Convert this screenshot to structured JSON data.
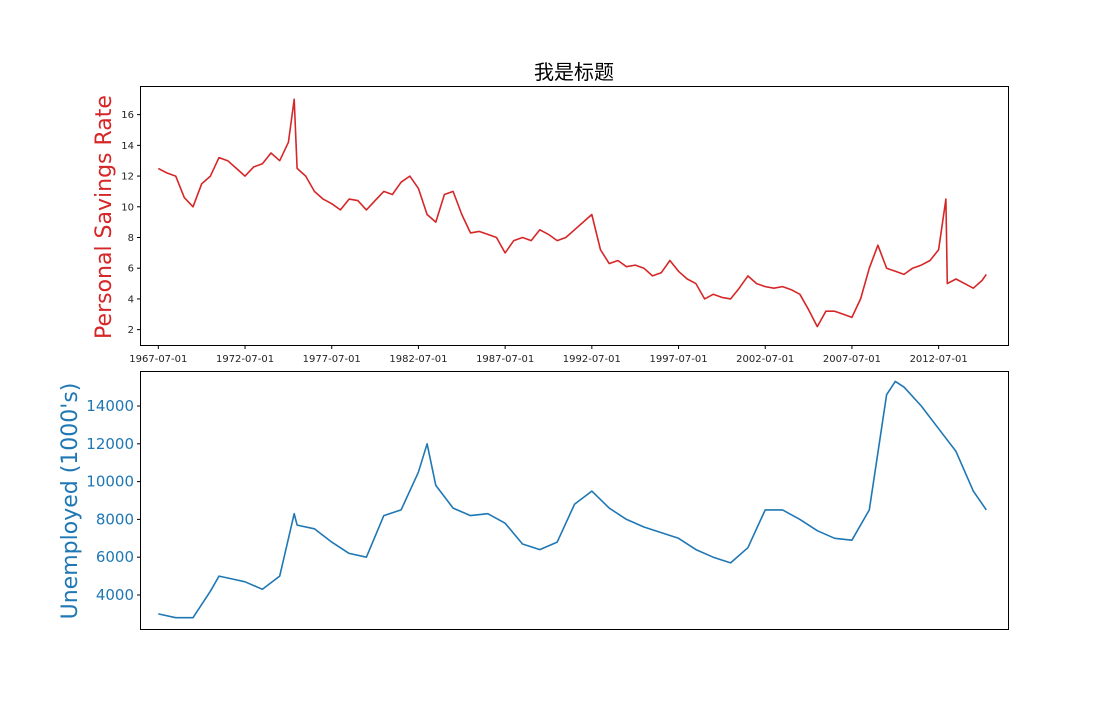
{
  "chart_data": [
    {
      "type": "line",
      "title": "我是标题",
      "ylabel": "Personal Savings Rate",
      "xlabel": "",
      "color": "#d62728",
      "x_start": "1967-07-01",
      "x_end": "2015-04-01",
      "xlim": [
        "1966-07-01",
        "2016-07-01"
      ],
      "ylim": [
        1,
        17.8
      ],
      "x_tick_labels": [
        "1967-07-01",
        "1972-07-01",
        "1977-07-01",
        "1982-07-01",
        "1987-07-01",
        "1992-07-01",
        "1997-07-01",
        "2002-07-01",
        "2007-07-01",
        "2012-07-01"
      ],
      "y_ticks": [
        "2",
        "4",
        "6",
        "8",
        "10",
        "12",
        "14",
        "16"
      ],
      "grid": false,
      "series": [
        {
          "x": [
            "1967-07-01",
            "1968-01-01",
            "1968-07-01",
            "1969-01-01",
            "1969-07-01",
            "1970-01-01",
            "1970-07-01",
            "1971-01-01",
            "1971-07-01",
            "1972-01-01",
            "1972-07-01",
            "1973-01-01",
            "1973-07-01",
            "1974-01-01",
            "1974-07-01",
            "1975-01-01",
            "1975-05-01",
            "1975-07-01",
            "1976-01-01",
            "1976-07-01",
            "1977-01-01",
            "1977-07-01",
            "1978-01-01",
            "1978-07-01",
            "1979-01-01",
            "1979-07-01",
            "1980-01-01",
            "1980-07-01",
            "1981-01-01",
            "1981-07-01",
            "1982-01-01",
            "1982-07-01",
            "1983-01-01",
            "1983-07-01",
            "1984-01-01",
            "1984-07-01",
            "1985-01-01",
            "1985-07-01",
            "1986-01-01",
            "1986-07-01",
            "1987-01-01",
            "1987-07-01",
            "1988-01-01",
            "1988-07-01",
            "1989-01-01",
            "1989-07-01",
            "1990-01-01",
            "1990-07-01",
            "1991-01-01",
            "1991-07-01",
            "1992-01-01",
            "1992-07-01",
            "1993-01-01",
            "1993-07-01",
            "1994-01-01",
            "1994-07-01",
            "1995-01-01",
            "1995-07-01",
            "1996-01-01",
            "1996-07-01",
            "1997-01-01",
            "1997-07-01",
            "1998-01-01",
            "1998-07-01",
            "1999-01-01",
            "1999-07-01",
            "2000-01-01",
            "2000-07-01",
            "2001-01-01",
            "2001-07-01",
            "2002-01-01",
            "2002-07-01",
            "2003-01-01",
            "2003-07-01",
            "2004-01-01",
            "2004-07-01",
            "2005-01-01",
            "2005-07-01",
            "2006-01-01",
            "2006-07-01",
            "2007-01-01",
            "2007-07-01",
            "2008-01-01",
            "2008-07-01",
            "2009-01-01",
            "2009-07-01",
            "2010-01-01",
            "2010-07-01",
            "2011-01-01",
            "2011-07-01",
            "2012-01-01",
            "2012-07-01",
            "2012-12-01",
            "2013-01-01",
            "2013-07-01",
            "2014-01-01",
            "2014-07-01",
            "2015-01-01",
            "2015-04-01"
          ],
          "values": [
            12.5,
            12.2,
            12.0,
            10.6,
            10.0,
            11.5,
            12.0,
            13.2,
            13.0,
            12.5,
            12.0,
            12.6,
            12.8,
            13.5,
            13.0,
            14.2,
            17.0,
            12.5,
            12.0,
            11.0,
            10.5,
            10.2,
            9.8,
            10.5,
            10.4,
            9.8,
            10.4,
            11.0,
            10.8,
            11.6,
            12.0,
            11.2,
            9.5,
            9.0,
            10.8,
            11.0,
            9.5,
            8.3,
            8.4,
            8.2,
            8.0,
            7.0,
            7.8,
            8.0,
            7.8,
            8.5,
            8.2,
            7.8,
            8.0,
            8.5,
            9.0,
            9.5,
            7.2,
            6.3,
            6.5,
            6.1,
            6.2,
            6.0,
            5.5,
            5.7,
            6.5,
            5.8,
            5.3,
            5.0,
            4.0,
            4.3,
            4.1,
            4.0,
            4.7,
            5.5,
            5.0,
            4.8,
            4.7,
            4.8,
            4.6,
            4.3,
            3.3,
            2.2,
            3.2,
            3.2,
            3.0,
            2.8,
            4.0,
            6.0,
            7.5,
            6.0,
            5.8,
            5.6,
            6.0,
            6.2,
            6.5,
            7.2,
            10.5,
            5.0,
            5.3,
            5.0,
            4.7,
            5.2,
            5.6
          ]
        }
      ]
    },
    {
      "type": "line",
      "title": "",
      "ylabel": "Unemployed (1000's)",
      "xlabel": "",
      "color": "#1f77b4",
      "ylim": [
        15800,
        2200
      ],
      "y_ticks": [
        "4000",
        "6000",
        "8000",
        "10000",
        "12000",
        "14000"
      ],
      "grid": false,
      "series": [
        {
          "x": [
            "1967-07-01",
            "1968-07-01",
            "1969-07-01",
            "1970-07-01",
            "1971-01-01",
            "1972-01-01",
            "1972-07-01",
            "1973-07-01",
            "1974-07-01",
            "1975-05-01",
            "1975-07-01",
            "1976-07-01",
            "1977-07-01",
            "1978-07-01",
            "1979-07-01",
            "1980-07-01",
            "1981-07-01",
            "1982-07-01",
            "1983-01-01",
            "1983-07-01",
            "1984-07-01",
            "1985-07-01",
            "1986-07-01",
            "1987-07-01",
            "1988-07-01",
            "1989-07-01",
            "1990-07-01",
            "1991-07-01",
            "1992-07-01",
            "1993-07-01",
            "1994-07-01",
            "1995-07-01",
            "1996-07-01",
            "1997-07-01",
            "1998-07-01",
            "1999-07-01",
            "2000-07-01",
            "2001-07-01",
            "2002-07-01",
            "2003-07-01",
            "2004-07-01",
            "2005-07-01",
            "2006-07-01",
            "2007-07-01",
            "2008-07-01",
            "2009-07-01",
            "2010-01-01",
            "2010-07-01",
            "2011-07-01",
            "2012-07-01",
            "2013-07-01",
            "2014-07-01",
            "2015-04-01"
          ],
          "values": [
            3000,
            2800,
            2800,
            4200,
            5000,
            4800,
            4700,
            4300,
            5000,
            8300,
            7700,
            7500,
            6800,
            6200,
            6000,
            8200,
            8500,
            10500,
            12000,
            9800,
            8600,
            8200,
            8300,
            7800,
            6700,
            6400,
            6800,
            8800,
            9500,
            8600,
            8000,
            7600,
            7300,
            7000,
            6400,
            6000,
            5700,
            6500,
            8500,
            8500,
            8000,
            7400,
            7000,
            6900,
            8500,
            14600,
            15300,
            15000,
            14000,
            12800,
            11600,
            9500,
            8500
          ]
        }
      ]
    }
  ]
}
